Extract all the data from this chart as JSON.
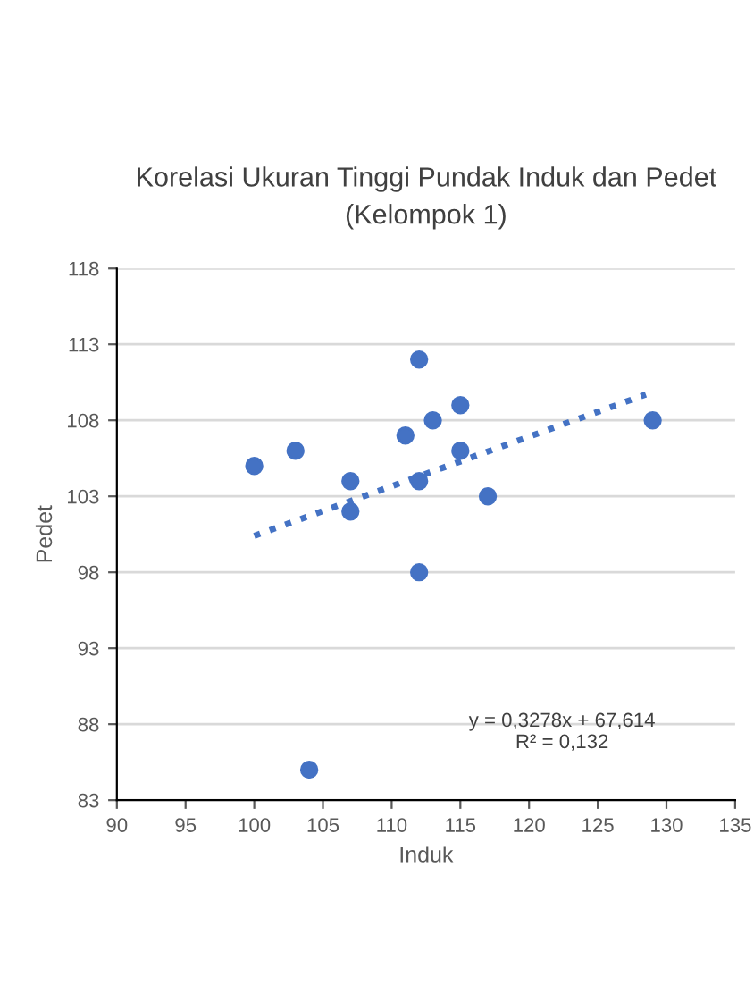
{
  "chart_data": {
    "type": "scatter",
    "title": "Korelasi Ukuran Tinggi Pundak Induk dan Pedet\n(Kelompok 1)",
    "xlabel": "Induk",
    "ylabel": "Pedet",
    "series": [
      {
        "color": "#4472c4",
        "marker": "circle",
        "x": [
          100,
          103,
          104,
          107,
          107,
          111,
          112,
          112,
          112,
          113,
          115,
          115,
          117,
          129
        ],
        "values": [
          105,
          106,
          85,
          104,
          102,
          107,
          112,
          104,
          98,
          108,
          109,
          106,
          103,
          108
        ]
      },
      {
        "type": "line",
        "color": "#4472c4",
        "line_style": "dotted",
        "marker": "none",
        "x": [
          100,
          128.5
        ],
        "values": [
          100.4,
          109.7
        ]
      }
    ],
    "annotations": [
      "y = 0,3278x + 67,614\nR² = 0,132"
    ],
    "xlim": [
      90,
      135
    ],
    "xticks": [
      90,
      95,
      100,
      105,
      110,
      115,
      120,
      125,
      130,
      135
    ],
    "ylim": [
      83,
      118
    ],
    "yticks": [
      83,
      88,
      93,
      98,
      103,
      108,
      113,
      118
    ],
    "grid": "y",
    "legend": false
  }
}
